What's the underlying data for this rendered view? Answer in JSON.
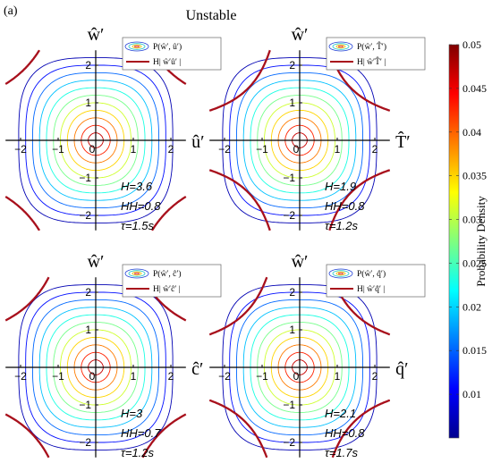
{
  "figure": {
    "panel_label": "(a)",
    "title": "Unstable",
    "colorbar": {
      "label": "Probability Density",
      "ticks": [
        "0.05",
        "0.045",
        "0.04",
        "0.035",
        "0.03",
        "0.025",
        "0.02",
        "0.015",
        "0.01"
      ],
      "range": [
        0.005,
        0.05
      ]
    }
  },
  "chart_data": [
    {
      "type": "contour",
      "xlabel": "û′",
      "ylabel": "ŵ′",
      "legend": [
        "P(ŵ′, û′)",
        "H| ŵ′û′ |"
      ],
      "annotations": [
        "H=3.6",
        "HH=0.8",
        "τ=1.5s"
      ],
      "x_ticks": [
        "−2",
        "−1",
        "0",
        "1",
        "2"
      ],
      "y_ticks": [
        "2",
        "1",
        "0",
        "−1",
        "−2"
      ],
      "xlim": [
        -2.5,
        2.5
      ],
      "ylim": [
        -2.5,
        2.5
      ],
      "hole_size": 3.6
    },
    {
      "type": "contour",
      "xlabel": "T̂′",
      "ylabel": "ŵ′",
      "legend": [
        "P(ŵ′, T̂′)",
        "H| ŵ′T̂′ |"
      ],
      "annotations": [
        "H=1.9",
        "HH=0.8",
        "τ=1.2s"
      ],
      "x_ticks": [
        "−2",
        "−1",
        "0",
        "1",
        "2"
      ],
      "y_ticks": [
        "2",
        "1",
        "0",
        "−1",
        "−2"
      ],
      "xlim": [
        -2.5,
        2.5
      ],
      "ylim": [
        -2.5,
        2.5
      ],
      "hole_size": 1.9
    },
    {
      "type": "contour",
      "xlabel": "ĉ′",
      "ylabel": "ŵ′",
      "legend": [
        "P(ŵ′, ĉ′)",
        "H| ŵ′ĉ′ |"
      ],
      "annotations": [
        "H=3",
        "HH=0.7",
        "τ=1.2s"
      ],
      "x_ticks": [
        "−2",
        "−1",
        "0",
        "1",
        "2"
      ],
      "y_ticks": [
        "2",
        "1",
        "0",
        "−1",
        "−2"
      ],
      "xlim": [
        -2.5,
        2.5
      ],
      "ylim": [
        -2.5,
        2.5
      ],
      "hole_size": 3
    },
    {
      "type": "contour",
      "xlabel": "q̂′",
      "ylabel": "ŵ′",
      "legend": [
        "P(ŵ′, q̂′)",
        "H| ŵ′q̂′ |"
      ],
      "annotations": [
        "H=2.1",
        "HH=0.8",
        "τ=1.7s"
      ],
      "x_ticks": [
        "−2",
        "−1",
        "0",
        "1",
        "2"
      ],
      "y_ticks": [
        "2",
        "1",
        "0",
        "−1",
        "−2"
      ],
      "xlim": [
        -2.5,
        2.5
      ],
      "ylim": [
        -2.5,
        2.5
      ],
      "hole_size": 2.1
    }
  ]
}
